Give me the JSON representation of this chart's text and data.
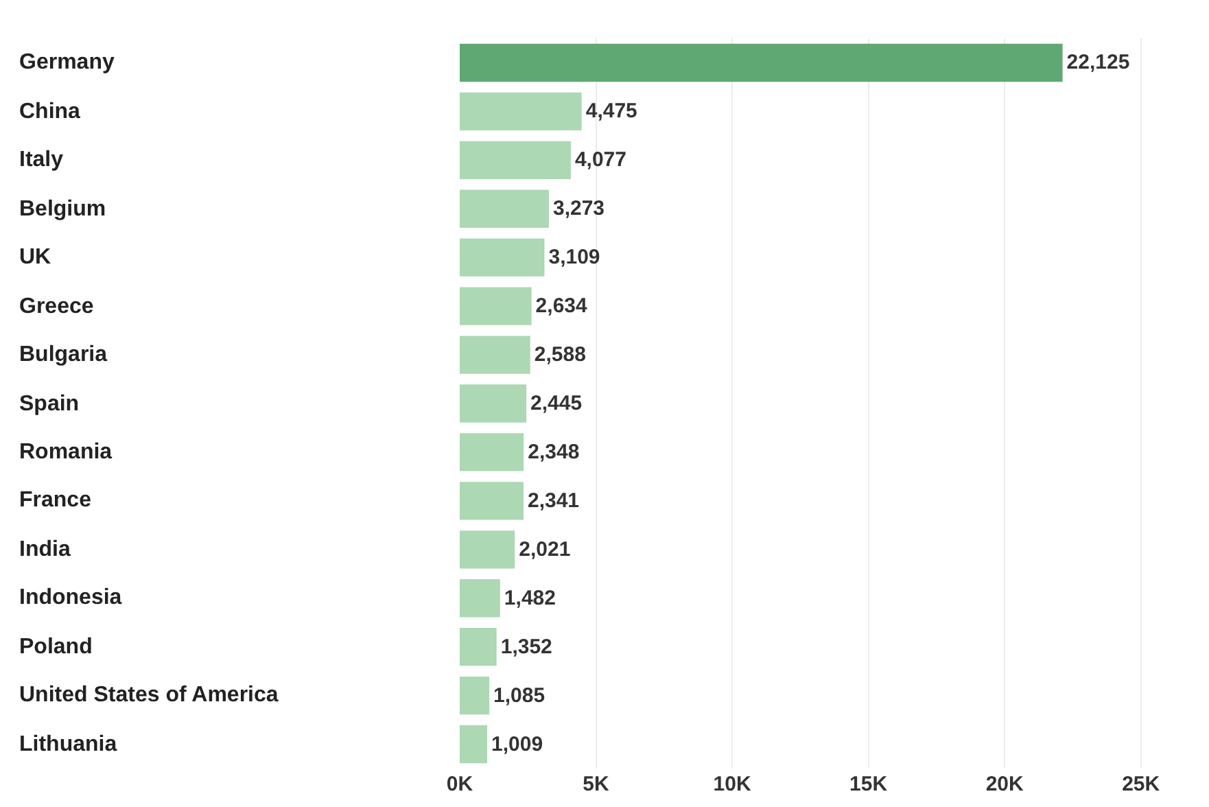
{
  "chart_data": {
    "type": "bar",
    "orientation": "horizontal",
    "categories": [
      "Germany",
      "China",
      "Italy",
      "Belgium",
      "UK",
      "Greece",
      "Bulgaria",
      "Spain",
      "Romania",
      "France",
      "India",
      "Indonesia",
      "Poland",
      "United States of America",
      "Lithuania"
    ],
    "values": [
      22125,
      4475,
      4077,
      3273,
      3109,
      2634,
      2588,
      2445,
      2348,
      2341,
      2021,
      1482,
      1352,
      1085,
      1009
    ],
    "value_labels": [
      "22,125",
      "4,475",
      "4,077",
      "3,273",
      "3,109",
      "2,634",
      "2,588",
      "2,445",
      "2,348",
      "2,341",
      "2,021",
      "1,482",
      "1,352",
      "1,085",
      "1,009"
    ],
    "colors": [
      "#5fa873",
      "#acd8b4",
      "#acd8b4",
      "#acd8b4",
      "#acd8b4",
      "#acd8b4",
      "#acd8b4",
      "#acd8b4",
      "#acd8b4",
      "#acd8b4",
      "#acd8b4",
      "#acd8b4",
      "#acd8b4",
      "#acd8b4",
      "#acd8b4"
    ],
    "xlim": [
      0,
      27500
    ],
    "xticks": [
      {
        "value": 0,
        "label": "0K"
      },
      {
        "value": 5000,
        "label": "5K"
      },
      {
        "value": 10000,
        "label": "10K"
      },
      {
        "value": 15000,
        "label": "15K"
      },
      {
        "value": 20000,
        "label": "20K"
      },
      {
        "value": 25000,
        "label": "25K"
      }
    ],
    "grid": "x",
    "legend": false
  }
}
